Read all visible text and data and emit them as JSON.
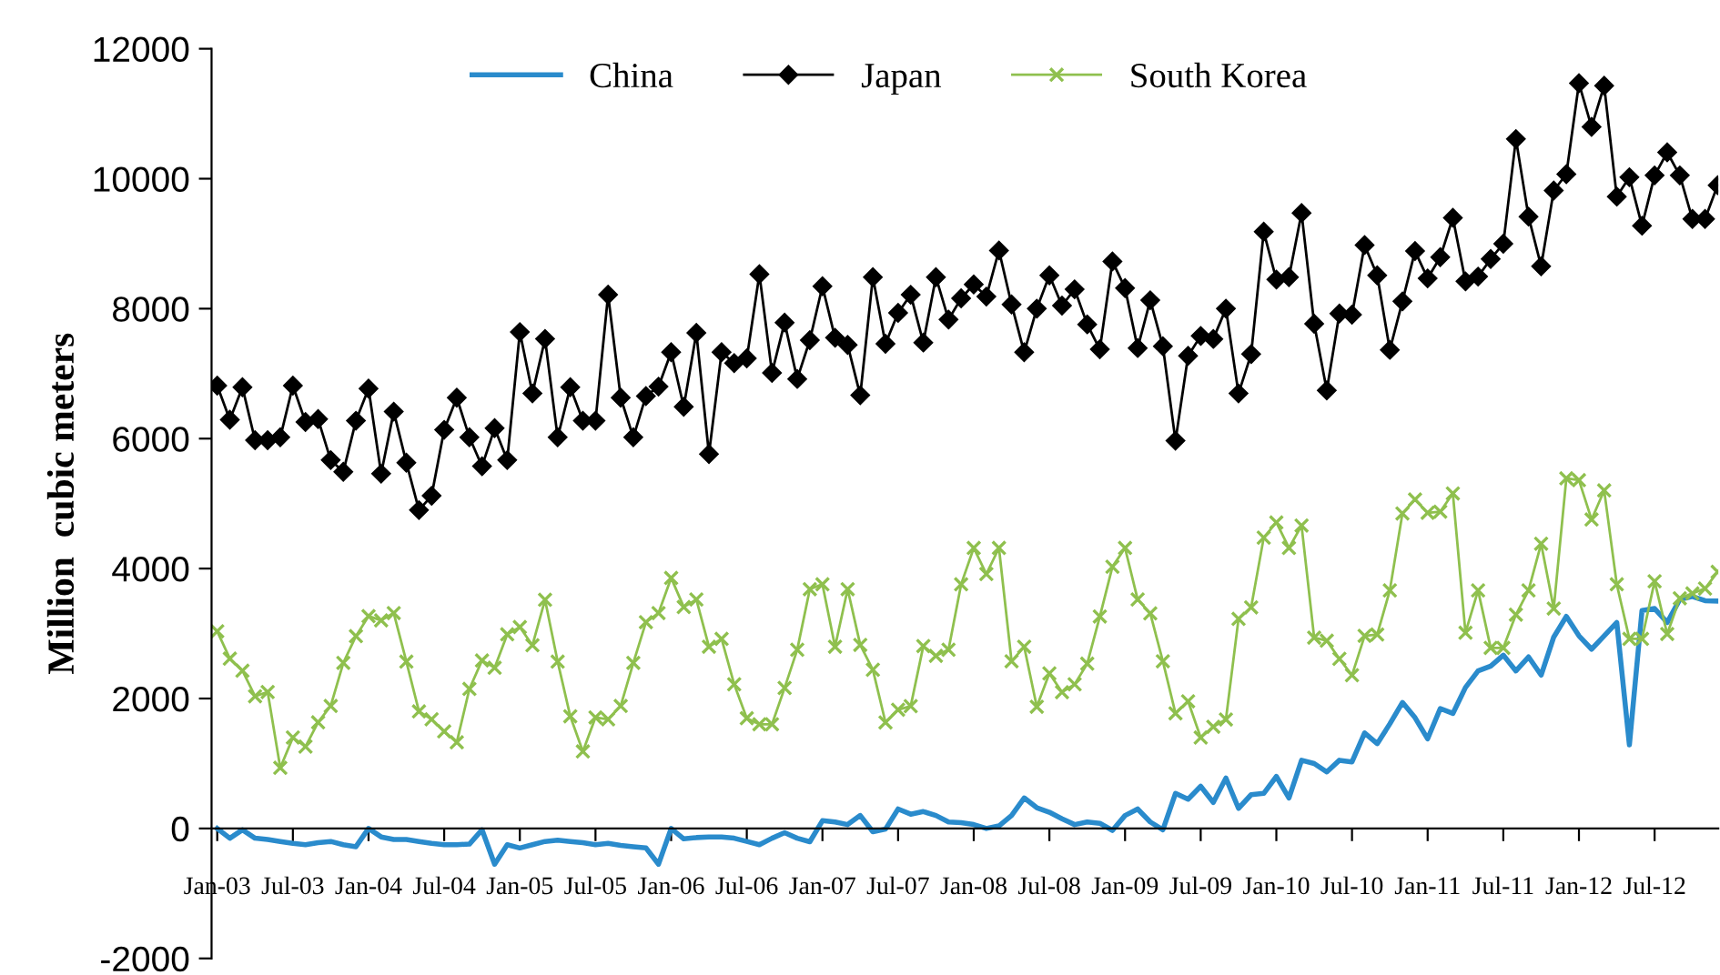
{
  "chart_data": {
    "type": "line",
    "ylabel": "Million  cubic meters",
    "categories": [
      "Jan-03",
      null,
      null,
      null,
      null,
      null,
      "Jul-03",
      null,
      null,
      null,
      null,
      null,
      "Jan-04",
      null,
      null,
      null,
      null,
      null,
      "Jul-04",
      null,
      null,
      null,
      null,
      null,
      "Jan-05",
      null,
      null,
      null,
      null,
      null,
      "Jul-05",
      null,
      null,
      null,
      null,
      null,
      "Jan-06",
      null,
      null,
      null,
      null,
      null,
      "Jul-06",
      null,
      null,
      null,
      null,
      null,
      "Jan-07",
      null,
      null,
      null,
      null,
      null,
      "Jul-07",
      null,
      null,
      null,
      null,
      null,
      "Jan-08",
      null,
      null,
      null,
      null,
      null,
      "Jul-08",
      null,
      null,
      null,
      null,
      null,
      "Jan-09",
      null,
      null,
      null,
      null,
      null,
      "Jul-09",
      null,
      null,
      null,
      null,
      null,
      "Jan-10",
      null,
      null,
      null,
      null,
      null,
      "Jul-10",
      null,
      null,
      null,
      null,
      null,
      "Jan-11",
      null,
      null,
      null,
      null,
      null,
      "Jul-11",
      null,
      null,
      null,
      null,
      null,
      "Jan-12",
      null,
      null,
      null,
      null,
      null,
      "Jul-12",
      null,
      null,
      null,
      null,
      null
    ],
    "series": [
      {
        "name": "China",
        "color": "#2a8bcc",
        "marker": "none",
        "values": [
          0,
          -150,
          -20,
          -150,
          -170,
          -200,
          -230,
          -250,
          -220,
          -200,
          -250,
          -280,
          0,
          -130,
          -170,
          -170,
          -200,
          -230,
          -250,
          -250,
          -240,
          -20,
          -550,
          -250,
          -300,
          -250,
          -200,
          -180,
          -200,
          -220,
          -250,
          -230,
          -260,
          -280,
          -300,
          -550,
          0,
          -160,
          -140,
          -130,
          -130,
          -150,
          -200,
          -250,
          -150,
          -65,
          -150,
          -205,
          120,
          100,
          60,
          200,
          -50,
          -10,
          300,
          220,
          260,
          200,
          100,
          90,
          60,
          0,
          40,
          200,
          470,
          320,
          250,
          150,
          60,
          100,
          80,
          -30,
          200,
          300,
          100,
          -20,
          540,
          450,
          650,
          400,
          775,
          310,
          520,
          540,
          800,
          470,
          1050,
          1000,
          870,
          1050,
          1025,
          1470,
          1305,
          1610,
          1940,
          1705,
          1380,
          1846,
          1770,
          2170,
          2425,
          2500,
          2667,
          2425,
          2640,
          2360,
          2946,
          3263,
          2965,
          2760,
          2965,
          3170,
          1287,
          3356,
          3385,
          3170,
          3525,
          3571,
          3506,
          3500
        ]
      },
      {
        "name": "Japan",
        "color": "#000000",
        "marker": "diamond",
        "values": [
          6815,
          6290,
          6790,
          5975,
          5975,
          6020,
          6815,
          6255,
          6300,
          5670,
          5490,
          6275,
          6770,
          5460,
          6415,
          5630,
          4900,
          5120,
          6135,
          6630,
          6020,
          5575,
          6160,
          5670,
          7640,
          6695,
          7535,
          6020,
          6790,
          6275,
          6275,
          8215,
          6630,
          6020,
          6655,
          6800,
          7330,
          6490,
          7627,
          5762,
          7329,
          7161,
          7236,
          8531,
          7012,
          7786,
          6918,
          7515,
          8345,
          7552,
          7441,
          6667,
          8485,
          7459,
          7935,
          8214,
          7478,
          8485,
          7832,
          8159,
          8373,
          8186,
          8895,
          8065,
          7329,
          8000,
          8513,
          8047,
          8298,
          7758,
          7375,
          8727,
          8317,
          7394,
          8130,
          7422,
          5967,
          7273,
          7580,
          7534,
          8000,
          6695,
          7300,
          9184,
          8448,
          8485,
          9473,
          7767,
          6741,
          7925,
          7907,
          8979,
          8513,
          7366,
          8112,
          8886,
          8466,
          8793,
          9399,
          8420,
          8494,
          8765,
          8998,
          10611,
          9417,
          8653,
          9818,
          10070,
          11469,
          10797,
          11431,
          9725,
          10023,
          9277,
          10051,
          10406,
          10051,
          9380,
          9380,
          9900
        ]
      },
      {
        "name": "South Korea",
        "color": "#8fc04e",
        "marker": "cross",
        "values": [
          3035,
          2614,
          2428,
          2035,
          2100,
          934,
          1400,
          1260,
          1634,
          1886,
          2549,
          2960,
          3268,
          3203,
          3315,
          2568,
          1802,
          1680,
          1494,
          1326,
          2148,
          2586,
          2474,
          2988,
          3100,
          2820,
          3520,
          2568,
          1727,
          1186,
          1709,
          1680,
          1886,
          2549,
          3175,
          3315,
          3856,
          3408,
          3524,
          2797,
          2918,
          2219,
          1697,
          1604,
          1604,
          2163,
          2751,
          3683,
          3758,
          2797,
          3683,
          2825,
          2443,
          1632,
          1828,
          1883,
          2807,
          2657,
          2751,
          3758,
          4317,
          3916,
          4317,
          2573,
          2797,
          1874,
          2387,
          2098,
          2219,
          2536,
          3263,
          4028,
          4317,
          3524,
          3310,
          2573,
          1772,
          1958,
          1399,
          1566,
          1678,
          3226,
          3403,
          4476,
          4709,
          4317,
          4662,
          2937,
          2890,
          2611,
          2359,
          2965,
          2984,
          3664,
          4848,
          5063,
          4858,
          4876,
          5156,
          3012,
          3664,
          2779,
          2779,
          3291,
          3664,
          4382,
          3385,
          5389,
          5361,
          4755,
          5203,
          3758,
          2918,
          2918,
          3804,
          2993,
          3543,
          3618,
          3692,
          3950
        ]
      }
    ],
    "ylim": [
      -2000,
      12000
    ],
    "yticks": [
      -2000,
      0,
      2000,
      4000,
      6000,
      8000,
      10000,
      12000
    ],
    "grid": false,
    "legend": "top",
    "line_style": "solid"
  }
}
